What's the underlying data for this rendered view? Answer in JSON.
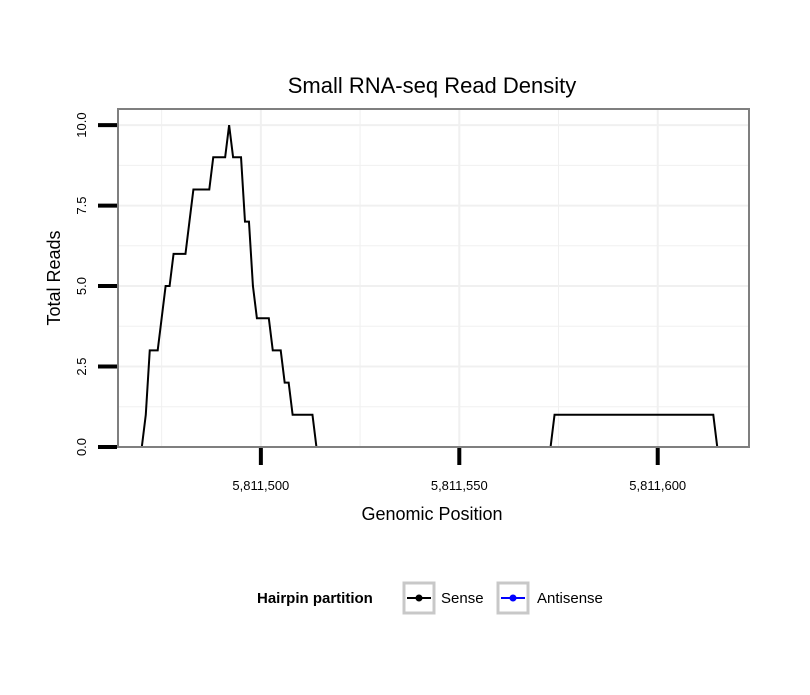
{
  "chart_data": {
    "type": "line",
    "title": "Small RNA-seq Read Density",
    "xlabel": "Genomic Position",
    "ylabel": "Total Reads",
    "xlim": [
      5811464,
      5811623
    ],
    "ylim": [
      0,
      10.5
    ],
    "x_ticks": [
      5811500,
      5811550,
      5811600
    ],
    "x_tick_labels": [
      "5,811,500",
      "5,811,550",
      "5,811,600"
    ],
    "y_ticks": [
      0,
      2.5,
      5,
      7.5,
      10
    ],
    "y_tick_labels": [
      "0.0",
      "2.5",
      "5.0",
      "7.5",
      "10.0"
    ],
    "grid": true,
    "legend_position": "bottom",
    "legend_title": "Hairpin partition",
    "series": [
      {
        "name": "Sense",
        "color": "#000000",
        "points": [
          [
            5811464,
            0
          ],
          [
            5811470,
            0
          ],
          [
            5811471,
            1
          ],
          [
            5811472,
            3
          ],
          [
            5811474,
            3
          ],
          [
            5811475,
            4
          ],
          [
            5811476,
            5
          ],
          [
            5811477,
            5
          ],
          [
            5811478,
            6
          ],
          [
            5811481,
            6
          ],
          [
            5811482,
            7
          ],
          [
            5811483,
            8
          ],
          [
            5811487,
            8
          ],
          [
            5811488,
            9
          ],
          [
            5811491,
            9
          ],
          [
            5811492,
            10
          ],
          [
            5811493,
            9
          ],
          [
            5811495,
            9
          ],
          [
            5811496,
            7
          ],
          [
            5811497,
            7
          ],
          [
            5811498,
            5
          ],
          [
            5811499,
            4
          ],
          [
            5811502,
            4
          ],
          [
            5811503,
            3
          ],
          [
            5811505,
            3
          ],
          [
            5811506,
            2
          ],
          [
            5811507,
            2
          ],
          [
            5811508,
            1
          ],
          [
            5811513,
            1
          ],
          [
            5811514,
            0
          ],
          [
            5811573,
            0
          ],
          [
            5811574,
            1
          ],
          [
            5811614,
            1
          ],
          [
            5811615,
            0
          ],
          [
            5811621,
            0
          ]
        ]
      },
      {
        "name": "Antisense",
        "color": "#0000ff",
        "points": [
          [
            5811470,
            0
          ],
          [
            5811514,
            0
          ],
          [
            5811574,
            0
          ],
          [
            5811615,
            0
          ]
        ]
      }
    ]
  }
}
